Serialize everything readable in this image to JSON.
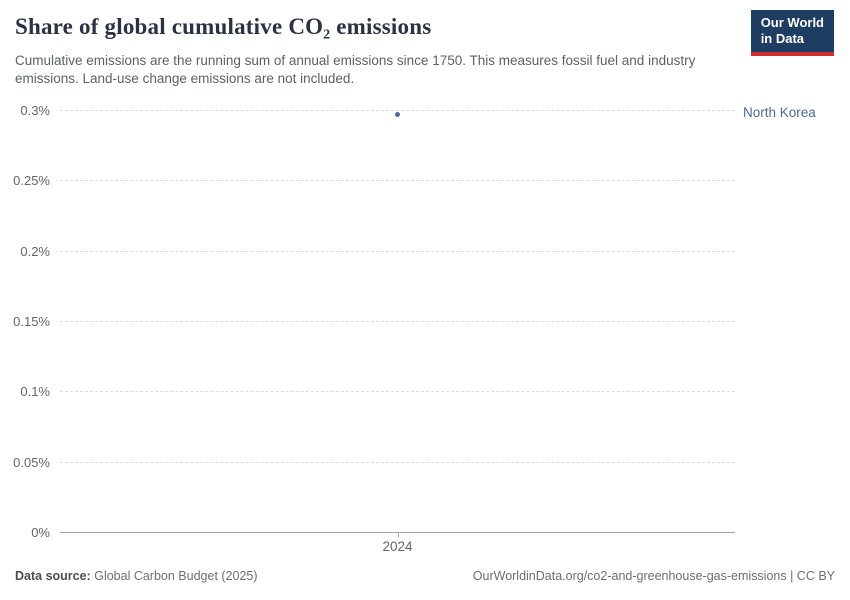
{
  "logo": {
    "line1": "Our World",
    "line2": "in Data",
    "bg_color": "#1d3d63",
    "accent_color": "#d42b2f"
  },
  "chart_data": {
    "type": "scatter",
    "title": "Share of global cumulative CO₂ emissions",
    "subtitle": "Cumulative emissions are the running sum of annual emissions since 1750. This measures fossil fuel and industry emissions. Land-use change emissions are not included.",
    "x": [
      2024
    ],
    "series": [
      {
        "name": "North Korea",
        "values": [
          0.297
        ],
        "color": "#4c6a9c"
      }
    ],
    "xlabel": "",
    "ylabel": "",
    "xtick_labels": [
      "2024"
    ],
    "ytick_labels": [
      "0%",
      "0.05%",
      "0.1%",
      "0.15%",
      "0.2%",
      "0.25%",
      "0.3%"
    ],
    "ylim": [
      0,
      0.3
    ],
    "grid": "horizontal-dashed",
    "legend_position": "right-entity-label"
  },
  "footer": {
    "data_source_label": "Data source:",
    "data_source": "Global Carbon Budget (2025)",
    "attribution": "OurWorldinData.org/co2-and-greenhouse-gas-emissions | CC BY"
  }
}
